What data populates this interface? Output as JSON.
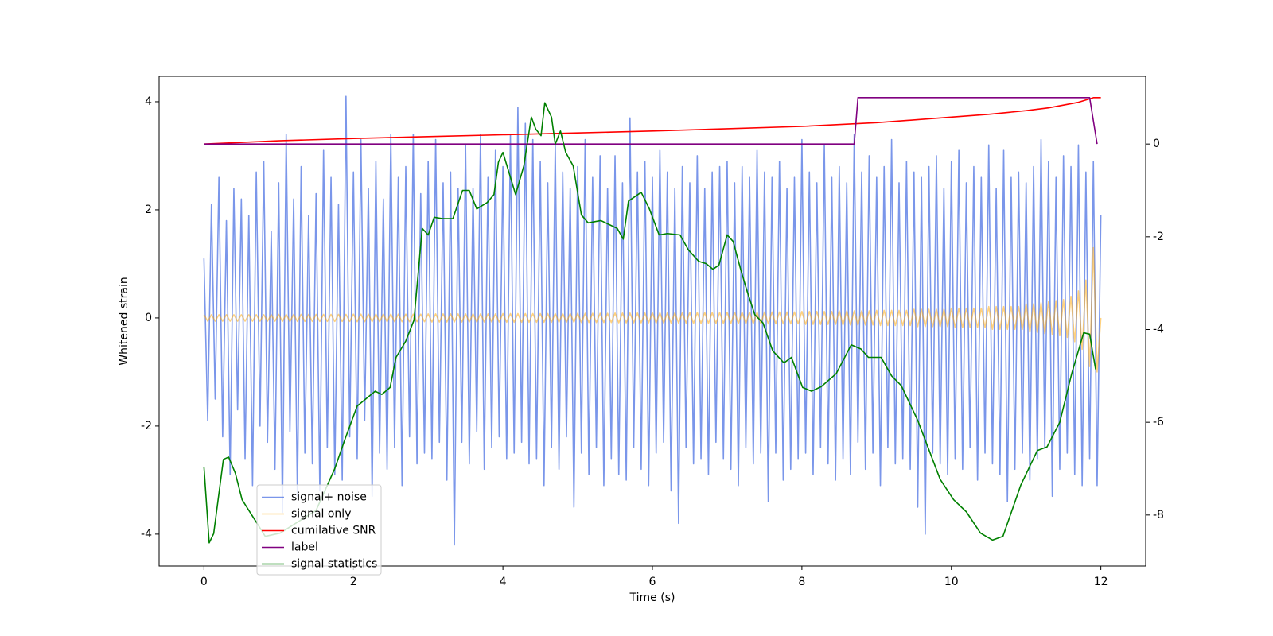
{
  "chart_data": {
    "type": "line",
    "xlabel": "Time (s)",
    "ylabel": "Whitened strain",
    "xlim": [
      -0.6,
      12.6
    ],
    "ylim": [
      -4.59,
      4.47
    ],
    "y2lim": [
      -9.1,
      1.46
    ],
    "xticks": [
      0,
      2,
      4,
      6,
      8,
      10,
      12
    ],
    "yticks": [
      -4,
      -2,
      0,
      2,
      4
    ],
    "y2ticks": [
      -8,
      -6,
      -4,
      -2,
      0
    ],
    "legend": "lower left",
    "x": [
      0,
      0.05,
      0.1,
      0.15,
      0.2,
      0.25,
      0.3,
      0.35,
      0.4,
      0.45,
      0.5,
      0.55,
      0.6,
      0.65,
      0.7,
      0.75,
      0.8,
      0.85,
      0.9,
      0.95,
      1,
      1.05,
      1.1,
      1.15,
      1.2,
      1.25,
      1.3,
      1.35,
      1.4,
      1.45,
      1.5,
      1.55,
      1.6,
      1.65,
      1.7,
      1.75,
      1.8,
      1.85,
      1.9,
      1.95,
      2,
      2.05,
      2.1,
      2.15,
      2.2,
      2.25,
      2.3,
      2.35,
      2.4,
      2.45,
      2.5,
      2.55,
      2.6,
      2.65,
      2.7,
      2.75,
      2.8,
      2.85,
      2.9,
      2.95,
      3,
      3.05,
      3.1,
      3.15,
      3.2,
      3.25,
      3.3,
      3.35,
      3.4,
      3.45,
      3.5,
      3.55,
      3.6,
      3.65,
      3.7,
      3.75,
      3.8,
      3.85,
      3.9,
      3.95,
      4,
      4.05,
      4.1,
      4.15,
      4.2,
      4.25,
      4.3,
      4.35,
      4.4,
      4.45,
      4.5,
      4.55,
      4.6,
      4.65,
      4.7,
      4.75,
      4.8,
      4.85,
      4.9,
      4.95,
      5,
      5.05,
      5.1,
      5.15,
      5.2,
      5.25,
      5.3,
      5.35,
      5.4,
      5.45,
      5.5,
      5.55,
      5.6,
      5.65,
      5.7,
      5.75,
      5.8,
      5.85,
      5.9,
      5.95,
      6,
      6.05,
      6.1,
      6.15,
      6.2,
      6.25,
      6.3,
      6.35,
      6.4,
      6.45,
      6.5,
      6.55,
      6.6,
      6.65,
      6.7,
      6.75,
      6.8,
      6.85,
      6.9,
      6.95,
      7,
      7.05,
      7.1,
      7.15,
      7.2,
      7.25,
      7.3,
      7.35,
      7.4,
      7.45,
      7.5,
      7.55,
      7.6,
      7.65,
      7.7,
      7.75,
      7.8,
      7.85,
      7.9,
      7.95,
      8,
      8.05,
      8.1,
      8.15,
      8.2,
      8.25,
      8.3,
      8.35,
      8.4,
      8.45,
      8.5,
      8.55,
      8.6,
      8.65,
      8.7,
      8.75,
      8.8,
      8.85,
      8.9,
      8.95,
      9,
      9.05,
      9.1,
      9.15,
      9.2,
      9.25,
      9.3,
      9.35,
      9.4,
      9.45,
      9.5,
      9.55,
      9.6,
      9.65,
      9.7,
      9.75,
      9.8,
      9.85,
      9.9,
      9.95,
      10,
      10.05,
      10.1,
      10.15,
      10.2,
      10.25,
      10.3,
      10.35,
      10.4,
      10.45,
      10.5,
      10.55,
      10.6,
      10.65,
      10.7,
      10.75,
      10.8,
      10.85,
      10.9,
      10.95,
      11,
      11.05,
      11.1,
      11.15,
      11.2,
      11.25,
      11.3,
      11.35,
      11.4,
      11.45,
      11.5,
      11.55,
      11.6,
      11.65,
      11.7,
      11.75,
      11.8,
      11.85,
      11.9,
      11.95,
      12
    ],
    "series": [
      {
        "name": "signal+ noise",
        "color": "#4169e1",
        "alpha": 0.7,
        "values": [
          1.1,
          -1.9,
          2.1,
          -1.5,
          2.6,
          -2.2,
          1.8,
          -2.9,
          2.4,
          -1.7,
          2.2,
          -2.6,
          1.9,
          -3.1,
          2.7,
          -2.0,
          2.9,
          -2.3,
          1.6,
          -2.8,
          2.5,
          -3.6,
          3.4,
          -2.1,
          2.2,
          -3.3,
          2.8,
          -2.5,
          1.9,
          -2.7,
          2.3,
          -3.2,
          3.1,
          -2.4,
          2.6,
          -2.9,
          2.1,
          -3.0,
          4.1,
          -2.2,
          2.7,
          -2.6,
          3.3,
          -1.9,
          2.4,
          -3.3,
          2.9,
          -2.5,
          2.2,
          -2.8,
          3.4,
          -2.4,
          2.6,
          -3.1,
          2.8,
          -2.2,
          3.4,
          -2.7,
          2.3,
          -2.5,
          2.9,
          -2.6,
          3.3,
          -2.3,
          2.5,
          -3.0,
          2.7,
          -4.2,
          2.4,
          -2.3,
          3.2,
          -2.7,
          2.4,
          -2.1,
          3.4,
          -2.8,
          2.6,
          -2.4,
          3.1,
          -2.2,
          2.8,
          -2.6,
          3.4,
          -2.5,
          3.9,
          -2.3,
          3.6,
          -2.7,
          3.3,
          -2.6,
          2.9,
          -3.1,
          2.5,
          -2.4,
          3.2,
          -2.8,
          2.7,
          -2.2,
          2.4,
          -3.5,
          2.8,
          -2.5,
          3.3,
          -2.9,
          2.6,
          -2.4,
          3.0,
          -3.1,
          2.4,
          -2.6,
          3.0,
          -2.9,
          2.5,
          -3.0,
          3.7,
          -2.4,
          2.7,
          -2.8,
          2.9,
          -3.1,
          2.6,
          -2.5,
          3.1,
          -2.3,
          2.7,
          -3.2,
          2.4,
          -3.8,
          2.8,
          -2.4,
          2.5,
          -2.7,
          3.0,
          -2.6,
          2.4,
          -2.9,
          2.7,
          -2.3,
          2.8,
          -2.6,
          2.9,
          -2.8,
          2.5,
          -3.1,
          2.8,
          -2.4,
          2.6,
          -2.7,
          3.1,
          -2.5,
          2.7,
          -3.4,
          2.6,
          -2.5,
          2.9,
          -3.0,
          2.4,
          -2.8,
          2.6,
          -2.6,
          3.3,
          -2.5,
          2.7,
          -2.9,
          2.5,
          -2.4,
          3.2,
          -2.7,
          2.6,
          -3.0,
          2.8,
          -2.6,
          2.5,
          -2.9,
          3.4,
          -2.3,
          2.7,
          -2.8,
          3.0,
          -2.5,
          2.6,
          -3.1,
          2.8,
          -2.4,
          3.3,
          -2.7,
          2.5,
          -2.6,
          2.9,
          -2.8,
          2.7,
          -3.5,
          2.6,
          -4.0,
          2.8,
          -2.5,
          3.0,
          -2.7,
          2.4,
          -2.9,
          2.9,
          -2.6,
          3.1,
          -2.8,
          2.5,
          -2.4,
          2.8,
          -3.0,
          2.6,
          -2.5,
          3.2,
          -2.7,
          2.4,
          -2.9,
          3.1,
          -3.4,
          2.6,
          -2.8,
          2.7,
          -2.5,
          2.5,
          -3.0,
          2.8,
          -2.6,
          3.3,
          -2.4,
          2.9,
          -3.3,
          2.6,
          -2.8,
          3.0,
          -2.5,
          2.8,
          -2.9,
          3.2,
          -3.1,
          2.7,
          -2.6,
          2.9,
          -3.1,
          1.9
        ]
      },
      {
        "name": "signal only",
        "color": "#ffa500",
        "alpha": 0.5,
        "values": [
          0.06,
          -0.06,
          0.06,
          -0.06,
          0.06,
          -0.06,
          0.06,
          -0.06,
          0.06,
          -0.06,
          0.06,
          -0.06,
          0.06,
          -0.06,
          0.06,
          -0.06,
          0.06,
          -0.06,
          0.06,
          -0.06,
          0.065,
          -0.065,
          0.065,
          -0.065,
          0.065,
          -0.065,
          0.065,
          -0.065,
          0.065,
          -0.065,
          0.065,
          -0.065,
          0.065,
          -0.065,
          0.065,
          -0.065,
          0.065,
          -0.065,
          0.065,
          -0.065,
          0.07,
          -0.07,
          0.07,
          -0.07,
          0.07,
          -0.07,
          0.07,
          -0.07,
          0.07,
          -0.07,
          0.07,
          -0.07,
          0.07,
          -0.07,
          0.07,
          -0.07,
          0.07,
          -0.07,
          0.07,
          -0.07,
          0.075,
          -0.075,
          0.075,
          -0.075,
          0.075,
          -0.075,
          0.075,
          -0.075,
          0.075,
          -0.075,
          0.075,
          -0.075,
          0.075,
          -0.075,
          0.075,
          -0.075,
          0.075,
          -0.075,
          0.075,
          -0.075,
          0.08,
          -0.08,
          0.08,
          -0.08,
          0.08,
          -0.08,
          0.08,
          -0.08,
          0.08,
          -0.08,
          0.08,
          -0.08,
          0.08,
          -0.08,
          0.08,
          -0.08,
          0.08,
          -0.08,
          0.08,
          -0.08,
          0.085,
          -0.085,
          0.085,
          -0.085,
          0.085,
          -0.085,
          0.085,
          -0.085,
          0.085,
          -0.085,
          0.09,
          -0.09,
          0.09,
          -0.09,
          0.09,
          -0.09,
          0.09,
          -0.09,
          0.09,
          -0.09,
          0.095,
          -0.095,
          0.095,
          -0.095,
          0.095,
          -0.095,
          0.095,
          -0.095,
          0.095,
          -0.095,
          0.1,
          -0.1,
          0.1,
          -0.1,
          0.1,
          -0.1,
          0.1,
          -0.1,
          0.1,
          -0.1,
          0.105,
          -0.105,
          0.105,
          -0.105,
          0.105,
          -0.105,
          0.105,
          -0.105,
          0.105,
          -0.105,
          0.11,
          -0.11,
          0.11,
          -0.11,
          0.11,
          -0.11,
          0.11,
          -0.11,
          0.11,
          -0.11,
          0.12,
          -0.12,
          0.12,
          -0.12,
          0.12,
          -0.12,
          0.12,
          -0.12,
          0.12,
          -0.12,
          0.13,
          -0.13,
          0.13,
          -0.13,
          0.13,
          -0.13,
          0.13,
          -0.13,
          0.13,
          -0.13,
          0.14,
          -0.14,
          0.14,
          -0.14,
          0.14,
          -0.14,
          0.14,
          -0.14,
          0.14,
          -0.14,
          0.16,
          -0.16,
          0.16,
          -0.16,
          0.16,
          -0.16,
          0.16,
          -0.16,
          0.16,
          -0.16,
          0.18,
          -0.18,
          0.18,
          -0.18,
          0.18,
          -0.18,
          0.18,
          -0.18,
          0.18,
          -0.18,
          0.21,
          -0.21,
          0.21,
          -0.21,
          0.21,
          -0.21,
          0.21,
          -0.21,
          0.21,
          -0.21,
          0.26,
          -0.26,
          0.26,
          -0.27,
          0.28,
          -0.29,
          0.3,
          -0.31,
          0.32,
          -0.33,
          0.34,
          -0.36,
          0.4,
          -0.44,
          0.5,
          -0.58,
          0.7,
          -0.9,
          1.3,
          -1.0,
          0
        ]
      },
      {
        "name": "cumilative SNR",
        "color": "#ff0000",
        "axis": "y2",
        "x": [
          0,
          1,
          2,
          3,
          4,
          5,
          6,
          7,
          8,
          9,
          10,
          10.5,
          11,
          11.3,
          11.5,
          11.7,
          11.8,
          11.9,
          12
        ],
        "values": [
          0,
          0.07,
          0.12,
          0.16,
          0.2,
          0.24,
          0.28,
          0.33,
          0.38,
          0.46,
          0.58,
          0.64,
          0.72,
          0.78,
          0.84,
          0.9,
          0.95,
          1.0,
          1.0
        ]
      },
      {
        "name": "label",
        "color": "#800080",
        "axis": "y2",
        "x": [
          0,
          8.7,
          8.75,
          11.85,
          11.95
        ],
        "values": [
          0,
          0,
          1,
          1,
          0
        ]
      },
      {
        "name": "signal statistics",
        "color": "#008000",
        "axis": "y2",
        "x": [
          0,
          0.07,
          0.13,
          0.26,
          0.33,
          0.42,
          0.51,
          0.75,
          0.82,
          1.02,
          1.5,
          1.75,
          1.89,
          2.05,
          2.29,
          2.38,
          2.49,
          2.57,
          2.7,
          2.81,
          2.92,
          3.0,
          3.08,
          3.19,
          3.33,
          3.46,
          3.55,
          3.65,
          3.79,
          3.88,
          3.94,
          4.0,
          4.17,
          4.28,
          4.38,
          4.44,
          4.51,
          4.56,
          4.65,
          4.7,
          4.77,
          4.84,
          4.94,
          5.05,
          5.14,
          5.31,
          5.53,
          5.61,
          5.68,
          5.85,
          5.96,
          6.09,
          6.2,
          6.37,
          6.48,
          6.62,
          6.72,
          6.81,
          6.89,
          7.0,
          7.08,
          7.18,
          7.27,
          7.37,
          7.48,
          7.61,
          7.76,
          7.86,
          8.01,
          8.13,
          8.26,
          8.46,
          8.66,
          8.79,
          8.89,
          9.06,
          9.2,
          9.33,
          9.55,
          9.85,
          10.03,
          10.2,
          10.39,
          10.55,
          10.69,
          10.93,
          11.15,
          11.28,
          11.45,
          11.61,
          11.77,
          11.85,
          11.93
        ],
        "values": [
          -6.96,
          -8.6,
          -8.4,
          -6.8,
          -6.75,
          -7.1,
          -7.67,
          -8.28,
          -8.46,
          -8.39,
          -7.9,
          -7.0,
          -6.35,
          -5.65,
          -5.33,
          -5.4,
          -5.25,
          -4.6,
          -4.25,
          -3.8,
          -1.82,
          -1.96,
          -1.58,
          -1.61,
          -1.61,
          -1.0,
          -1.0,
          -1.4,
          -1.26,
          -1.09,
          -0.39,
          -0.18,
          -1.09,
          -0.47,
          0.58,
          0.32,
          0.18,
          0.89,
          0.58,
          0,
          0.28,
          -0.18,
          -0.47,
          -1.53,
          -1.7,
          -1.65,
          -1.82,
          -2.05,
          -1.23,
          -1.04,
          -1.4,
          -1.96,
          -1.93,
          -1.96,
          -2.28,
          -2.53,
          -2.58,
          -2.7,
          -2.61,
          -1.96,
          -2.1,
          -2.7,
          -3.19,
          -3.68,
          -3.86,
          -4.46,
          -4.72,
          -4.6,
          -5.25,
          -5.33,
          -5.23,
          -4.95,
          -4.33,
          -4.42,
          -4.6,
          -4.6,
          -5.0,
          -5.21,
          -5.96,
          -7.23,
          -7.67,
          -7.93,
          -8.39,
          -8.54,
          -8.46,
          -7.35,
          -6.61,
          -6.53,
          -6.0,
          -4.95,
          -4.07,
          -4.1,
          -4.86
        ]
      }
    ]
  }
}
